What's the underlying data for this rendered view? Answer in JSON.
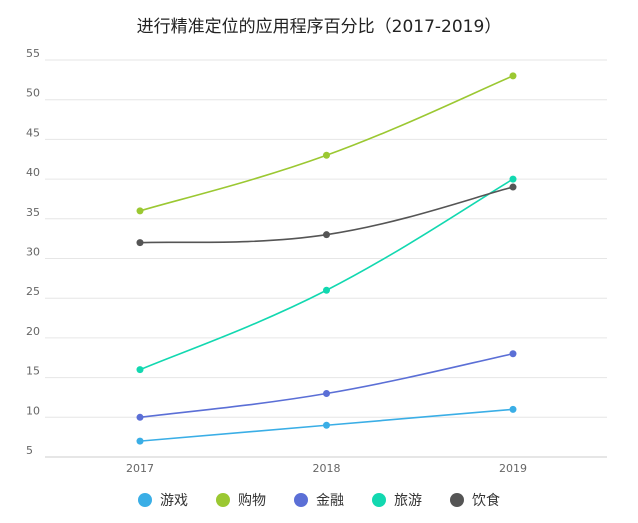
{
  "chart_data": {
    "type": "line",
    "title": "进行精准定位的应用程序百分比（2017-2019）",
    "xlabel": "",
    "ylabel": "",
    "categories": [
      "2017",
      "2018",
      "2019"
    ],
    "yticks": [
      5,
      10,
      15,
      20,
      25,
      30,
      35,
      40,
      45,
      50,
      55
    ],
    "ylim": [
      5,
      55
    ],
    "grid": true,
    "legend_position": "bottom",
    "series": [
      {
        "name": "游戏",
        "color": "#3aaee6",
        "values": [
          7,
          9,
          11
        ]
      },
      {
        "name": "购物",
        "color": "#9bc832",
        "values": [
          36,
          43,
          53
        ]
      },
      {
        "name": "金融",
        "color": "#5b6fd6",
        "values": [
          10,
          13,
          18
        ]
      },
      {
        "name": "旅游",
        "color": "#12d8b0",
        "values": [
          16,
          26,
          40
        ]
      },
      {
        "name": "饮食",
        "color": "#555555",
        "values": [
          32,
          33,
          39
        ]
      }
    ]
  }
}
